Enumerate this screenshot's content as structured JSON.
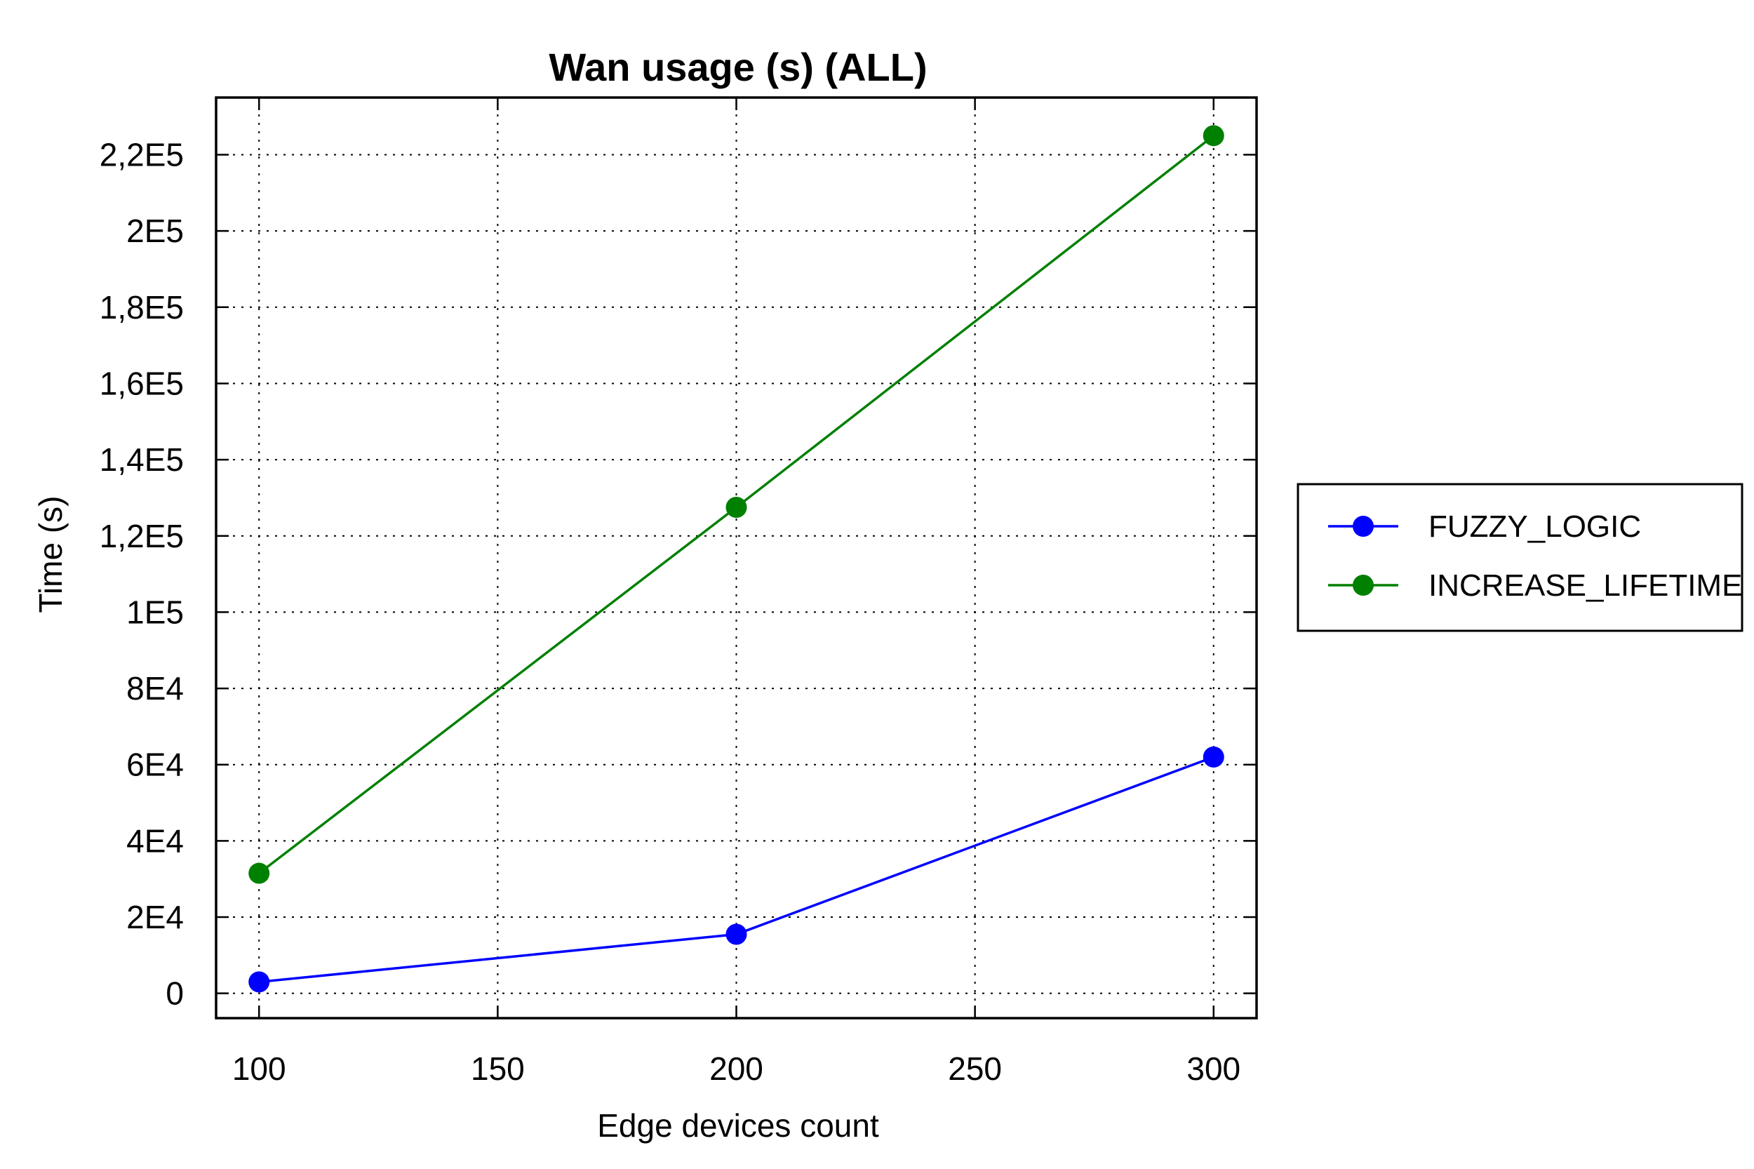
{
  "chart_data": {
    "type": "line",
    "title": "Wan usage (s) (ALL)",
    "xlabel": "Edge devices count",
    "ylabel": "Time (s)",
    "x": [
      100,
      200,
      300
    ],
    "xlim": [
      91,
      309
    ],
    "ylim": [
      -6500,
      235000
    ],
    "x_ticks": [
      100,
      150,
      200,
      250,
      300
    ],
    "x_tick_labels": [
      "100",
      "150",
      "200",
      "250",
      "300"
    ],
    "y_ticks": [
      0,
      20000,
      40000,
      60000,
      80000,
      100000,
      120000,
      140000,
      160000,
      180000,
      200000,
      220000
    ],
    "y_tick_labels": [
      "0",
      "2E4",
      "4E4",
      "6E4",
      "8E4",
      "1E5",
      "1,2E5",
      "1,4E5",
      "1,6E5",
      "1,8E5",
      "2E5",
      "2,2E5"
    ],
    "grid": true,
    "legend_position": "right",
    "series": [
      {
        "name": "FUZZY_LOGIC",
        "color": "#0000ff",
        "values": [
          3000,
          15500,
          62000
        ]
      },
      {
        "name": "INCREASE_LIFETIME",
        "color": "#008000",
        "values": [
          31500,
          127500,
          225000
        ]
      }
    ]
  }
}
